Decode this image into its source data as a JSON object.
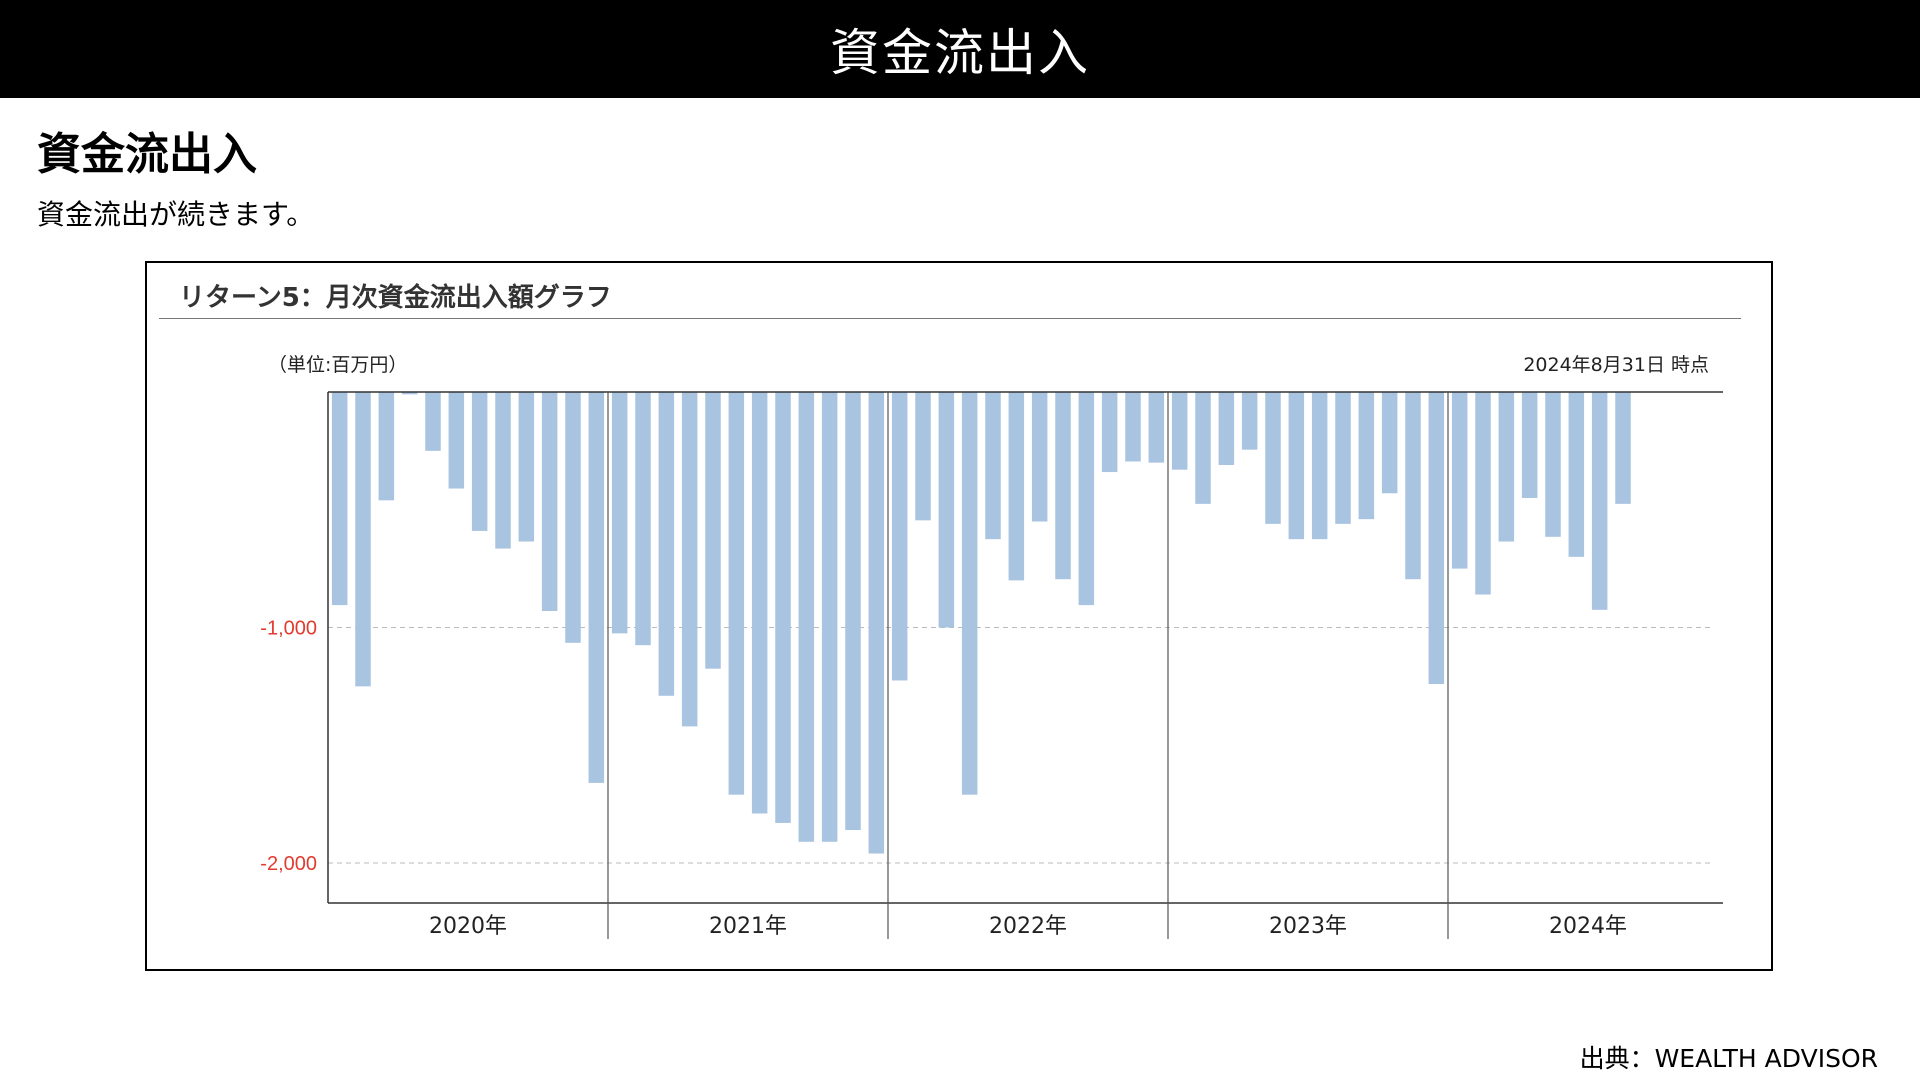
{
  "header": {
    "title": "資金流出入"
  },
  "section": {
    "heading": "資金流出入",
    "description": "資金流出が続きます。"
  },
  "chart_data": {
    "type": "bar",
    "title": "リターン5：月次資金流出入額グラフ",
    "unit_label": "（単位:百万円）",
    "as_of": "2024年8月31日 時点",
    "ylim": [
      -2170,
      0
    ],
    "yticks": [
      {
        "value": -1000,
        "label": "-1,000"
      },
      {
        "value": -2000,
        "label": "-2,000"
      }
    ],
    "grid": true,
    "year_groups": [
      {
        "label": "2020年",
        "months": 12
      },
      {
        "label": "2021年",
        "months": 12
      },
      {
        "label": "2022年",
        "months": 12
      },
      {
        "label": "2023年",
        "months": 12
      },
      {
        "label": "2024年",
        "months": 8
      }
    ],
    "values": [
      -905,
      -1250,
      -460,
      -10,
      -250,
      -410,
      -590,
      -665,
      -635,
      -930,
      -1065,
      -1660,
      -1025,
      -1075,
      -1290,
      -1420,
      -1175,
      -1710,
      -1790,
      -1830,
      -1910,
      -1910,
      -1860,
      -1960,
      -1225,
      -545,
      -1000,
      -1710,
      -625,
      -800,
      -550,
      -795,
      -905,
      -340,
      -295,
      -300,
      -330,
      -475,
      -310,
      -245,
      -560,
      -625,
      -625,
      -560,
      -540,
      -430,
      -795,
      -1240,
      -750,
      -860,
      -635,
      -450,
      -615,
      -700,
      -925,
      -475
    ],
    "bar_color": "#a9c4e0",
    "tick_label_color": "#e23b2f"
  },
  "footer": {
    "source": "出典：WEALTH ADVISOR"
  }
}
